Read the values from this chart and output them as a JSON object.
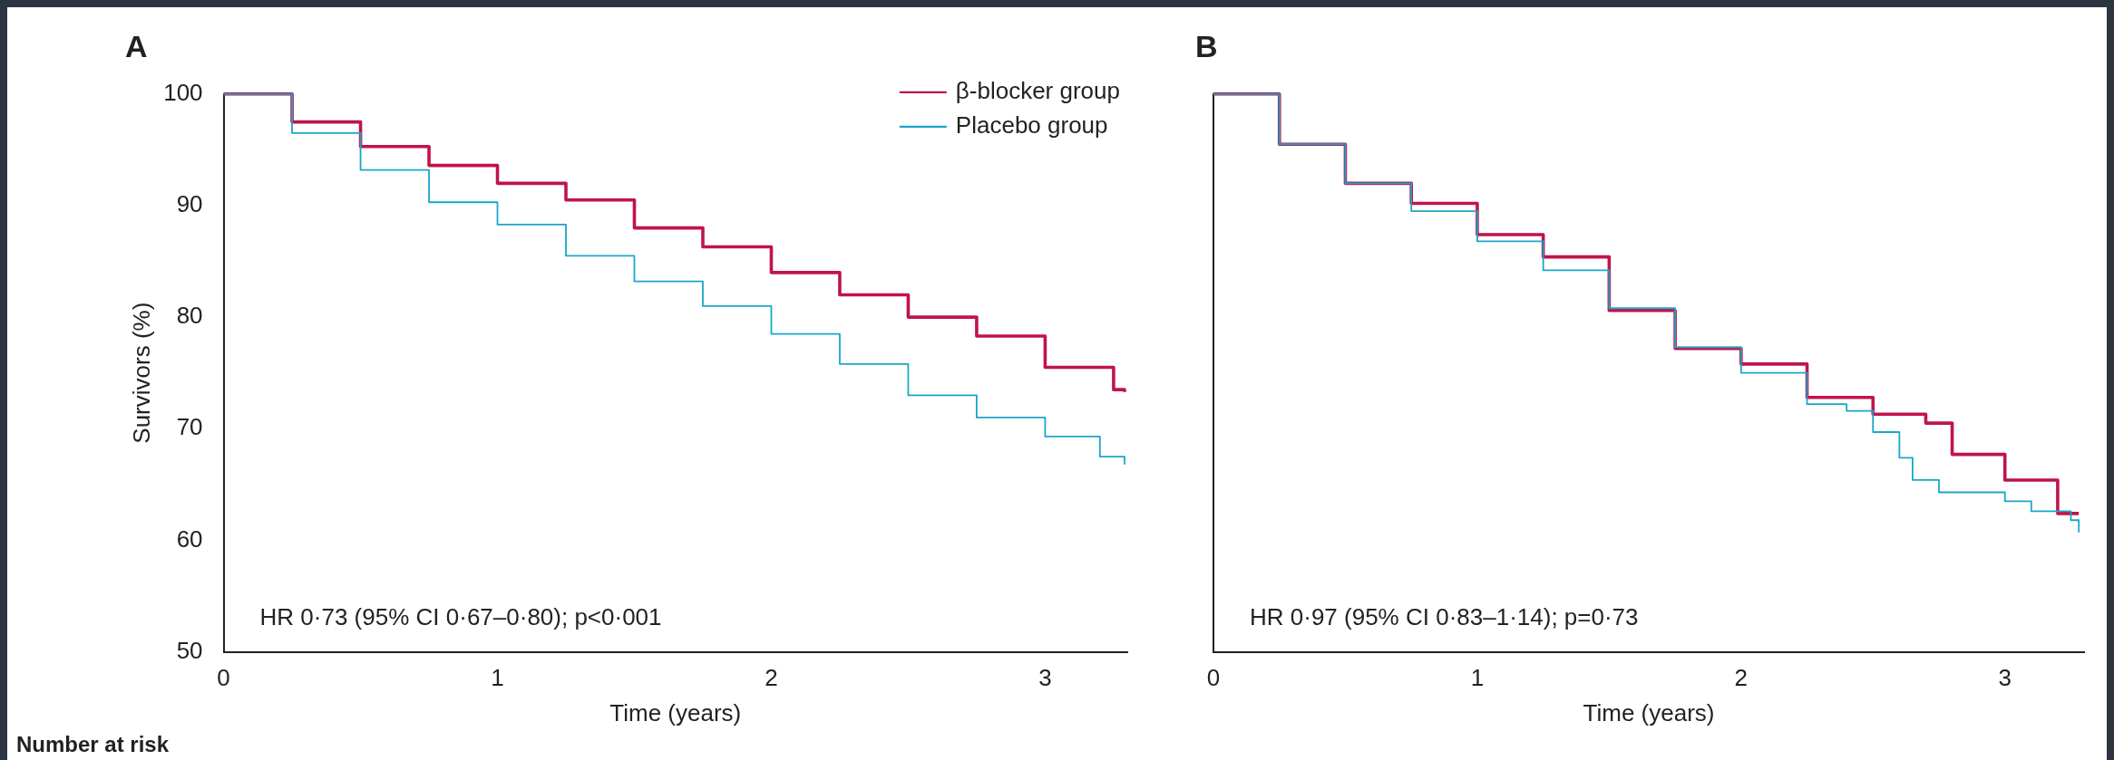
{
  "chart_data": [
    {
      "type": "step",
      "title": "A",
      "xlabel": "Time (years)",
      "ylabel": "Survivors (%)",
      "xlim": [
        0,
        3.3
      ],
      "xticks": [
        0,
        1,
        2,
        3
      ],
      "ylim": [
        50,
        100
      ],
      "yticks": [
        50,
        60,
        70,
        80,
        90,
        100
      ],
      "grid": false,
      "legend": "top right",
      "marker": "none",
      "annotations": [
        "HR 0·73 (95% CI 0·67–0·80); p<0·001",
        "Number at risk"
      ],
      "series": [
        {
          "name": "β-blocker group",
          "color": "#c0144a",
          "x": [
            0,
            0.25,
            0.5,
            0.75,
            1,
            1.25,
            1.5,
            1.75,
            2,
            2.25,
            2.5,
            2.75,
            3,
            3.25,
            3.29
          ],
          "values": [
            100,
            97.5,
            95.3,
            93.6,
            92,
            90.5,
            88,
            86.3,
            84,
            82,
            80,
            78.3,
            75.5,
            73.5,
            73.3
          ]
        },
        {
          "name": "Placebo group",
          "color": "#1aa6c8",
          "x": [
            0,
            0.25,
            0.5,
            0.75,
            1,
            1.25,
            1.5,
            1.75,
            2,
            2.25,
            2.5,
            2.75,
            3,
            3.2,
            3.29
          ],
          "values": [
            100,
            96.5,
            93.2,
            90.3,
            88.3,
            85.5,
            83.2,
            81,
            78.5,
            75.8,
            73,
            71,
            69.3,
            67.5,
            66.8
          ]
        }
      ]
    },
    {
      "type": "step",
      "title": "B",
      "xlabel": "Time (years)",
      "xlim": [
        0,
        3.3
      ],
      "xticks": [
        0,
        1,
        2,
        3
      ],
      "ylim": [
        50,
        100
      ],
      "yticks": [
        50,
        60,
        70,
        80,
        90,
        100
      ],
      "tick_labels": "x",
      "grid": false,
      "marker": "none",
      "annotations": [
        "HR 0·97 (95% CI 0·83–1·14); p=0·73"
      ],
      "series": [
        {
          "color": "#c0144a",
          "x": [
            0,
            0.25,
            0.5,
            0.75,
            1,
            1.25,
            1.5,
            1.75,
            2,
            2.25,
            2.5,
            2.7,
            2.8,
            3,
            3.2,
            3.28
          ],
          "values": [
            100,
            95.5,
            92,
            90.2,
            87.4,
            85.4,
            80.6,
            77.2,
            75.8,
            72.8,
            71.3,
            70.5,
            67.7,
            65.4,
            62.4,
            62.4
          ]
        },
        {
          "color": "#1aa6c8",
          "x": [
            0,
            0.25,
            0.5,
            0.75,
            1,
            1.25,
            1.5,
            1.75,
            2,
            2.25,
            2.4,
            2.5,
            2.6,
            2.65,
            2.75,
            3,
            3.1,
            3.25,
            3.28
          ],
          "values": [
            100,
            95.5,
            92,
            89.5,
            86.8,
            84.2,
            80.8,
            77.3,
            75,
            72.2,
            71.6,
            69.7,
            67.4,
            65.4,
            64.3,
            63.5,
            62.6,
            61.8,
            60.7
          ]
        }
      ]
    }
  ]
}
